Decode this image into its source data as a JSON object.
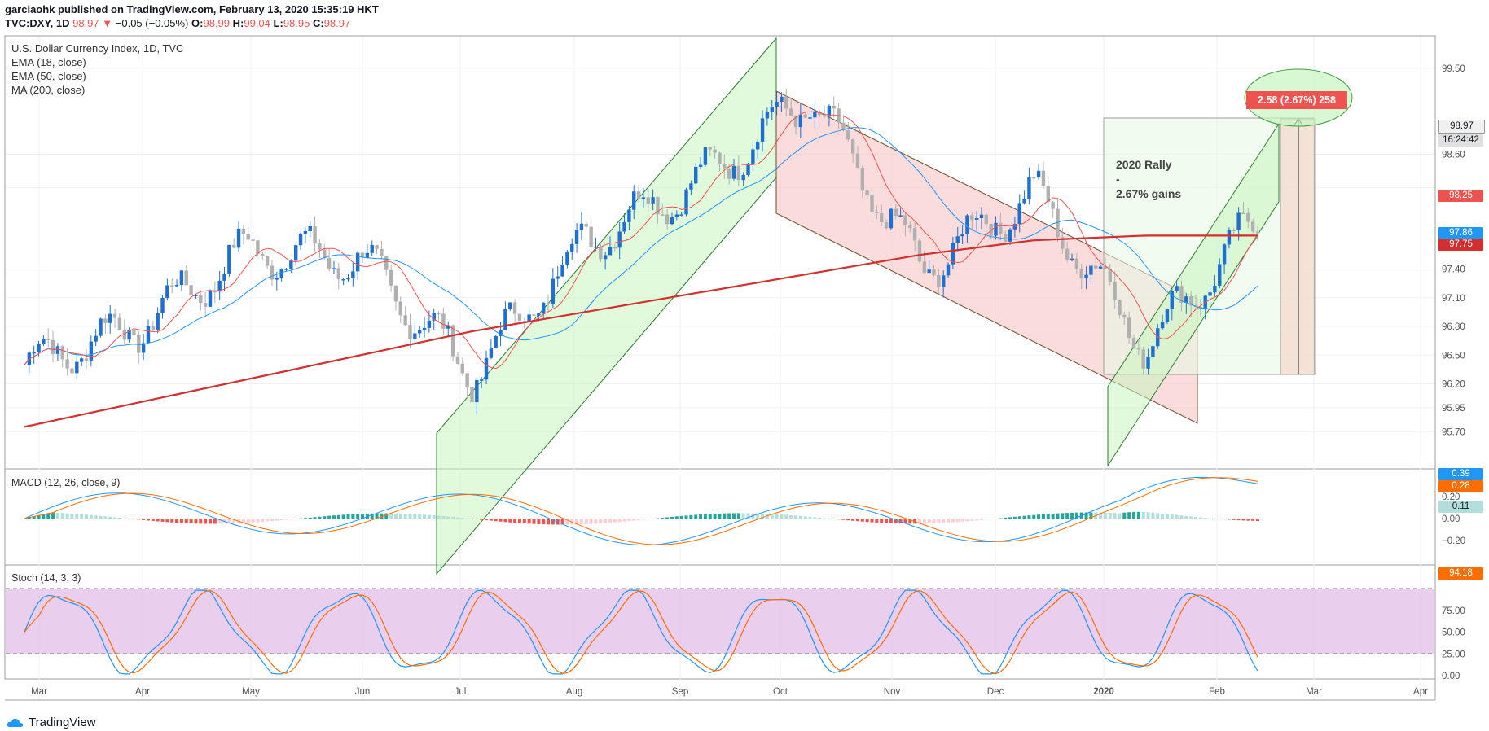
{
  "header": {
    "line1": "garciaohk published on TradingView.com, February 13, 2020 15:35:19 HKT",
    "symbol": "TVC:DXY, 1D",
    "last": "98.97",
    "change": "−0.05 (−0.05%)",
    "o_label": "O:",
    "o_val": "98.99",
    "h_label": "H:",
    "h_val": "99.04",
    "l_label": "L:",
    "l_val": "98.95",
    "c_label": "C:",
    "c_val": "98.97"
  },
  "legend": {
    "title": "U.S. Dollar Currency Index, 1D, TVC",
    "ema18": "EMA (18, close)",
    "ema50": "EMA (50, close)",
    "ma200": "MA (200, close)"
  },
  "annotations": {
    "measure": "2.58 (2.67%) 258",
    "rally_text": "2020 Rally\n-\n2.67% gains"
  },
  "price_tags": {
    "last": "98.97",
    "countdown": "16:24:42",
    "ema18": "98.25",
    "ema50": "97.86",
    "ma200": "97.75"
  },
  "macd": {
    "label": "MACD (12, 26, close, 9)",
    "macd_tag": "0.39",
    "signal_tag": "0.28",
    "hist_tag": "0.11",
    "ticks": [
      "0.20",
      "0.00",
      "−0.20"
    ]
  },
  "stoch": {
    "label": "Stoch (14, 3, 3)",
    "k_tag": "94.18",
    "ticks": [
      "75.00",
      "50.00",
      "25.00",
      "0.00"
    ]
  },
  "footer": {
    "brand": "TradingView"
  },
  "colors": {
    "up": "#1e6fd0",
    "down": "#b0b0b0",
    "ema18": "#ef5350",
    "ema50": "#2196f3",
    "ma200": "#d32f2f",
    "stoch_fill": "#e1bee7",
    "macd_line": "#2196f3",
    "signal_line": "#ff6d00"
  },
  "chart_data": {
    "type": "line",
    "title": "U.S. Dollar Currency Index, 1D, TVC",
    "x_ticks": [
      "Mar",
      "Apr",
      "May",
      "Jun",
      "Jul",
      "Aug",
      "Sep",
      "Oct",
      "Nov",
      "Dec",
      "2020",
      "Feb",
      "Mar",
      "Apr"
    ],
    "y_ticks": [
      "99.50",
      "98.97",
      "98.60",
      "98.25",
      "97.86",
      "97.75",
      "97.40",
      "97.10",
      "96.80",
      "96.50",
      "96.20",
      "95.95",
      "95.70"
    ],
    "ylim": [
      95.6,
      99.85
    ],
    "series": [
      {
        "name": "U.S. Dollar Currency Index",
        "x": [
          "Mar",
          "Apr",
          "May",
          "Jun",
          "Jul",
          "Aug",
          "Sep",
          "Oct",
          "Nov",
          "Dec",
          "2020",
          "Feb"
        ],
        "values": [
          96.4,
          96.8,
          97.6,
          97.5,
          96.3,
          97.7,
          98.3,
          99.2,
          97.4,
          98.2,
          96.6,
          97.9
        ]
      },
      {
        "name": "EMA (18, close)",
        "x": [
          "Mar",
          "Apr",
          "May",
          "Jun",
          "Jul",
          "Aug",
          "Sep",
          "Oct",
          "Nov",
          "Dec",
          "2020",
          "Feb"
        ],
        "values": [
          96.6,
          96.8,
          97.5,
          97.6,
          96.7,
          97.5,
          98.1,
          98.9,
          97.9,
          97.8,
          96.9,
          97.8
        ]
      },
      {
        "name": "EMA (50, close)",
        "x": [
          "Mar",
          "Apr",
          "May",
          "Jun",
          "Jul",
          "Aug",
          "Sep",
          "Oct",
          "Nov",
          "Dec",
          "2020",
          "Feb"
        ],
        "values": [
          96.5,
          96.7,
          97.2,
          97.4,
          97.1,
          97.3,
          97.8,
          98.4,
          98.2,
          97.9,
          97.3,
          97.6
        ]
      },
      {
        "name": "MA (200, close)",
        "x": [
          "Mar",
          "Apr",
          "May",
          "Jun",
          "Jul",
          "Aug",
          "Sep",
          "Oct",
          "Nov",
          "Dec",
          "2020",
          "Feb"
        ],
        "values": [
          95.75,
          96.0,
          96.25,
          96.5,
          96.75,
          96.95,
          97.15,
          97.35,
          97.55,
          97.7,
          97.75,
          97.75
        ]
      }
    ],
    "grid": true,
    "legend": "top-left"
  }
}
